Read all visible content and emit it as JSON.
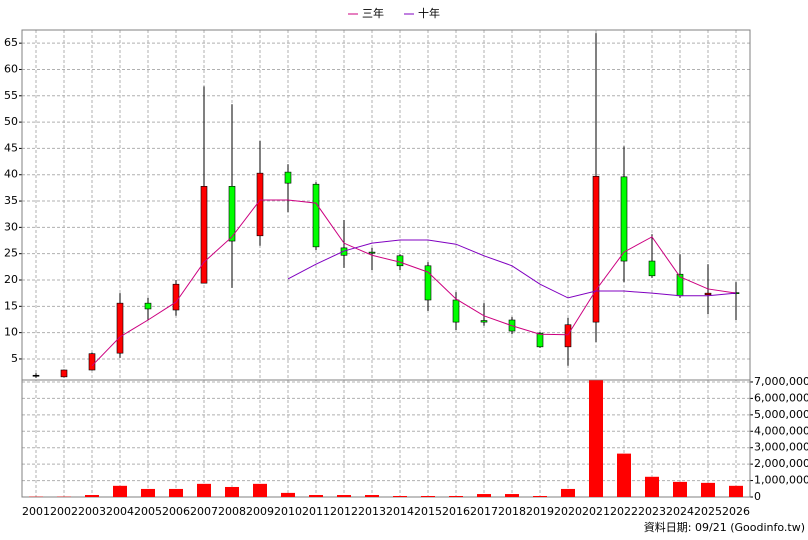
{
  "chart_data": [
    {
      "type": "candlestick",
      "categories": [
        "2001",
        "2002",
        "2003",
        "2004",
        "2005",
        "2006",
        "2007",
        "2008",
        "2009",
        "2010",
        "2011",
        "2012",
        "2013",
        "2014",
        "2015",
        "2016",
        "2017",
        "2018",
        "2019",
        "2020",
        "2021",
        "2022",
        "2023",
        "2024",
        "2025",
        "2026"
      ],
      "open": [
        1.9,
        1.6,
        2.9,
        6.1,
        15.6,
        14.3,
        19.4,
        37.8,
        28.4,
        40.5,
        38.2,
        26.1,
        25.3,
        24.6,
        22.7,
        16.2,
        12.3,
        12.4,
        9.9,
        7.3,
        12.0,
        39.6,
        23.6,
        21.1,
        17.2,
        17.6
      ],
      "high": [
        2.3,
        3.0,
        6.2,
        17.5,
        16.6,
        20.0,
        56.8,
        53.4,
        46.4,
        42.0,
        38.6,
        31.4,
        26.1,
        24.9,
        23.4,
        17.7,
        15.6,
        13.0,
        10.1,
        12.8,
        66.9,
        45.4,
        28.7,
        24.9,
        23.0,
        19.6
      ],
      "low": [
        1.4,
        1.5,
        2.8,
        5.2,
        12.4,
        13.2,
        19.4,
        18.5,
        26.5,
        32.9,
        25.7,
        22.3,
        21.9,
        21.9,
        14.1,
        10.5,
        11.3,
        9.7,
        7.1,
        3.7,
        8.2,
        19.6,
        20.4,
        16.6,
        13.5,
        12.4
      ],
      "close": [
        1.9,
        2.9,
        6.0,
        15.6,
        14.5,
        19.2,
        37.8,
        27.4,
        40.3,
        38.4,
        26.3,
        24.7,
        25.1,
        22.7,
        16.2,
        12.0,
        12.0,
        10.3,
        7.3,
        11.5,
        39.7,
        23.6,
        20.8,
        17.0,
        17.5,
        17.4
      ],
      "up_color": "#ff0000",
      "down_color": "#00ff00",
      "series": [
        {
          "name": "三年",
          "color": "#cc0080",
          "values": [
            null,
            null,
            3.7,
            9.2,
            12.4,
            15.8,
            23.4,
            28.2,
            35.2,
            35.2,
            34.6,
            27.0,
            24.7,
            23.4,
            21.5,
            16.4,
            13.2,
            11.3,
            9.7,
            9.6,
            18.1,
            25.3,
            28.2,
            20.6,
            18.3,
            17.5
          ]
        },
        {
          "name": "十年",
          "color": "#8000c0",
          "values": [
            null,
            null,
            null,
            null,
            null,
            null,
            null,
            null,
            null,
            20.2,
            23.0,
            25.5,
            27.0,
            27.6,
            27.6,
            26.8,
            24.6,
            22.7,
            19.2,
            16.6,
            17.9,
            17.9,
            17.5,
            17.0,
            17.0,
            17.5
          ]
        }
      ],
      "ylim": [
        1,
        67.5
      ],
      "yticks": [
        5,
        10,
        15,
        20,
        25,
        30,
        35,
        40,
        45,
        50,
        55,
        60,
        65
      ],
      "grid": true,
      "legend": "top"
    },
    {
      "type": "bar",
      "color": "#ff0000",
      "values": [
        20000,
        20000,
        120000,
        680000,
        490000,
        490000,
        800000,
        610000,
        800000,
        250000,
        120000,
        120000,
        120000,
        60000,
        60000,
        60000,
        180000,
        180000,
        60000,
        490000,
        7100000,
        2640000,
        1230000,
        920000,
        860000,
        680000
      ],
      "ylim": [
        0,
        7120000
      ],
      "yticks": [
        {
          "value": 0,
          "label": "0"
        },
        {
          "value": 1000000,
          "label": "1,000,000"
        },
        {
          "value": 2000000,
          "label": "2,000,000"
        },
        {
          "value": 3000000,
          "label": "3,000,000"
        },
        {
          "value": 4000000,
          "label": "4,000,000"
        },
        {
          "value": 5000000,
          "label": "5,000,000"
        },
        {
          "value": 6000000,
          "label": "6,000,000"
        },
        {
          "value": 7000000,
          "label": "7,000,000"
        }
      ],
      "grid": true,
      "annotation": "資料日期: 09/21 (Goodinfo.tw)"
    }
  ]
}
